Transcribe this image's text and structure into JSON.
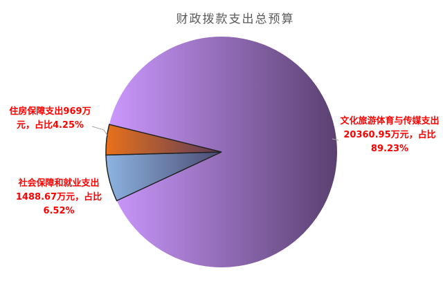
{
  "chart_data": {
    "type": "pie",
    "title": "财政拨款支出总预算",
    "slices": [
      {
        "label": "文化旅游体育与传媒支出20360.95万元，占比89.23%",
        "value": 20360.95,
        "percent": 89.23,
        "color_light": "#cc99ff",
        "color_dark": "#5a4070"
      },
      {
        "label": "社会保障和就业支出1488.67万元，占比6.52%",
        "value": 1488.67,
        "percent": 6.52,
        "color_light": "#8db4e2",
        "color_dark": "#4a4a70"
      },
      {
        "label": "住房保障支出969万元，占比4.25%",
        "value": 969,
        "percent": 4.25,
        "color_light": "#e8711a",
        "color_dark": "#5a3a5a"
      }
    ],
    "label_color": "#ff0000"
  }
}
